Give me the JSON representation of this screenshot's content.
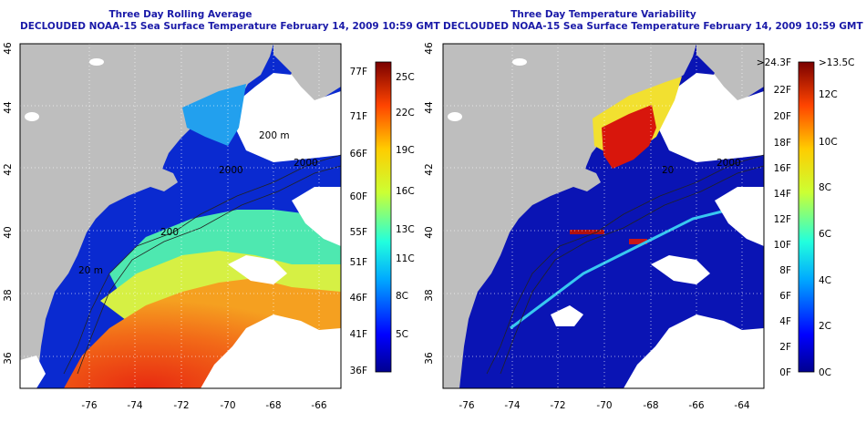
{
  "panels": [
    {
      "title_line1": "Three Day Rolling Average",
      "title_line2": "DECLOUDED NOAA-15 Sea Surface Temperature February 14, 2009 10:59 GMT",
      "colorbar": {
        "left_labels": [
          "77F",
          "71F",
          "66F",
          "60F",
          "55F",
          "51F",
          "46F",
          "41F",
          "36F"
        ],
        "right_labels": [
          "25C",
          "22C",
          "19C",
          "16C",
          "13C",
          "11C",
          "8C",
          "5C"
        ]
      }
    },
    {
      "title_line1": "Three Day Temperature Variability",
      "title_line2": "DECLOUDED NOAA-15 Sea Surface Temperature February 14, 2009 10:59 GMT",
      "colorbar": {
        "left_labels": [
          ">24.3F",
          "22F",
          "20F",
          "18F",
          "16F",
          "14F",
          "12F",
          "10F",
          "8F",
          "6F",
          "4F",
          "2F",
          "0F"
        ],
        "right_labels": [
          ">13.5C",
          "12C",
          "10C",
          "8C",
          "6C",
          "4C",
          "2C",
          "0C"
        ]
      }
    }
  ],
  "axes": {
    "lon_labels": [
      "-76",
      "-74",
      "-72",
      "-70",
      "-68",
      "-66",
      "-64"
    ],
    "lat_labels": [
      "46",
      "44",
      "42",
      "40",
      "38",
      "36"
    ]
  },
  "contour_labels": [
    "200",
    "2000",
    "200 m",
    "2000",
    "20 m",
    "20"
  ],
  "colors": {
    "title": "#1a1aa8",
    "land": "#bebebe",
    "cold": "#0a14b4",
    "warm": "#e62810",
    "cloud": "#ffffff"
  }
}
